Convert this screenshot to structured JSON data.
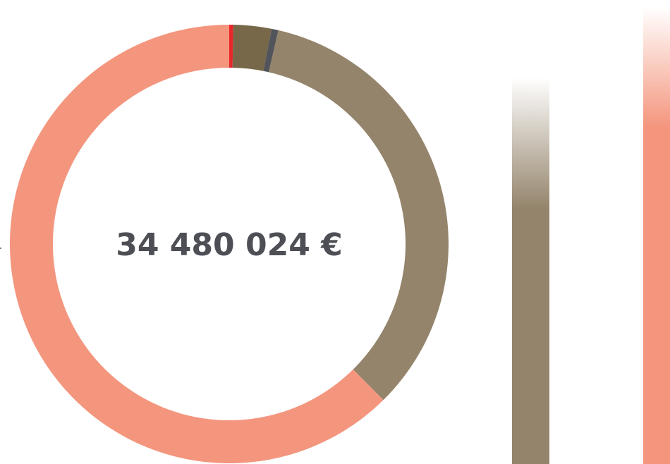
{
  "chart_data": {
    "type": "pie",
    "donut": true,
    "center_label": "34 480 024 €",
    "values": [
      0.3,
      2.8,
      0.5,
      34,
      62.4
    ],
    "colors": [
      "#e8272b",
      "#776849",
      "#52545c",
      "#94846b",
      "#f4967e"
    ]
  }
}
